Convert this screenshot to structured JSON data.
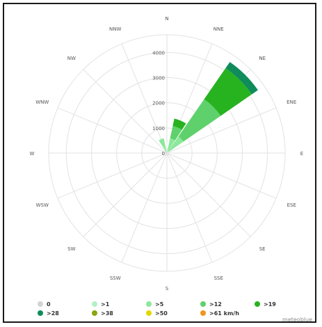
{
  "chart_data": {
    "type": "windrose",
    "directions": [
      "N",
      "NNE",
      "NE",
      "ENE",
      "E",
      "ESE",
      "SE",
      "SSE",
      "S",
      "SSW",
      "SW",
      "WSW",
      "W",
      "WNW",
      "NW",
      "NNW"
    ],
    "radial_ticks": [
      "0",
      "1000",
      "2000",
      "3000",
      "4000"
    ],
    "rmax": 4700,
    "bins": [
      {
        "label": "0",
        "color": "#d3d3d3"
      },
      {
        "label": ">1",
        "color": "#b3f0c6"
      },
      {
        "label": ">5",
        "color": "#8ce89a"
      },
      {
        "label": ">12",
        "color": "#5fd16c"
      },
      {
        "label": ">19",
        "color": "#27b21f"
      },
      {
        "label": ">28",
        "color": "#0f8c5a"
      },
      {
        "label": ">38",
        "color": "#8aa60f"
      },
      {
        "label": ">50",
        "color": "#e2d800"
      },
      {
        "label": ">61 km/h",
        "color": "#f0961e"
      }
    ],
    "series": [
      {
        "name": "N",
        "values": [
          0,
          0,
          0,
          0,
          0,
          0,
          0,
          0,
          0
        ]
      },
      {
        "name": "NNE",
        "values": [
          0,
          100,
          500,
          500,
          300,
          0,
          0,
          0,
          0
        ]
      },
      {
        "name": "NE",
        "values": [
          0,
          100,
          700,
          1800,
          1500,
          300,
          0,
          0,
          0
        ]
      },
      {
        "name": "ENE",
        "values": [
          0,
          0,
          0,
          0,
          0,
          0,
          0,
          0,
          0
        ]
      },
      {
        "name": "E",
        "values": [
          0,
          0,
          0,
          0,
          0,
          0,
          0,
          0,
          0
        ]
      },
      {
        "name": "ESE",
        "values": [
          0,
          0,
          0,
          0,
          0,
          0,
          0,
          0,
          0
        ]
      },
      {
        "name": "SE",
        "values": [
          0,
          0,
          0,
          0,
          0,
          0,
          0,
          0,
          0
        ]
      },
      {
        "name": "SSE",
        "values": [
          0,
          0,
          0,
          0,
          0,
          0,
          0,
          0,
          0
        ]
      },
      {
        "name": "S",
        "values": [
          0,
          0,
          0,
          0,
          0,
          0,
          0,
          0,
          0
        ]
      },
      {
        "name": "SSW",
        "values": [
          0,
          0,
          0,
          0,
          0,
          0,
          0,
          0,
          0
        ]
      },
      {
        "name": "SW",
        "values": [
          0,
          0,
          0,
          0,
          0,
          0,
          0,
          0,
          0
        ]
      },
      {
        "name": "WSW",
        "values": [
          0,
          0,
          0,
          0,
          0,
          0,
          0,
          0,
          0
        ]
      },
      {
        "name": "W",
        "values": [
          0,
          0,
          0,
          0,
          0,
          0,
          0,
          0,
          0
        ]
      },
      {
        "name": "WNW",
        "values": [
          0,
          0,
          0,
          0,
          0,
          0,
          0,
          0,
          0
        ]
      },
      {
        "name": "NW",
        "values": [
          0,
          0,
          0,
          0,
          0,
          0,
          0,
          0,
          0
        ]
      },
      {
        "name": "NNW",
        "values": [
          0,
          50,
          550,
          0,
          0,
          0,
          0,
          0,
          0
        ]
      }
    ]
  },
  "branding": "meteoblue",
  "colors": {
    "grid": "#e2e2e2",
    "border": "#1a1a1a",
    "text": "#555555"
  }
}
